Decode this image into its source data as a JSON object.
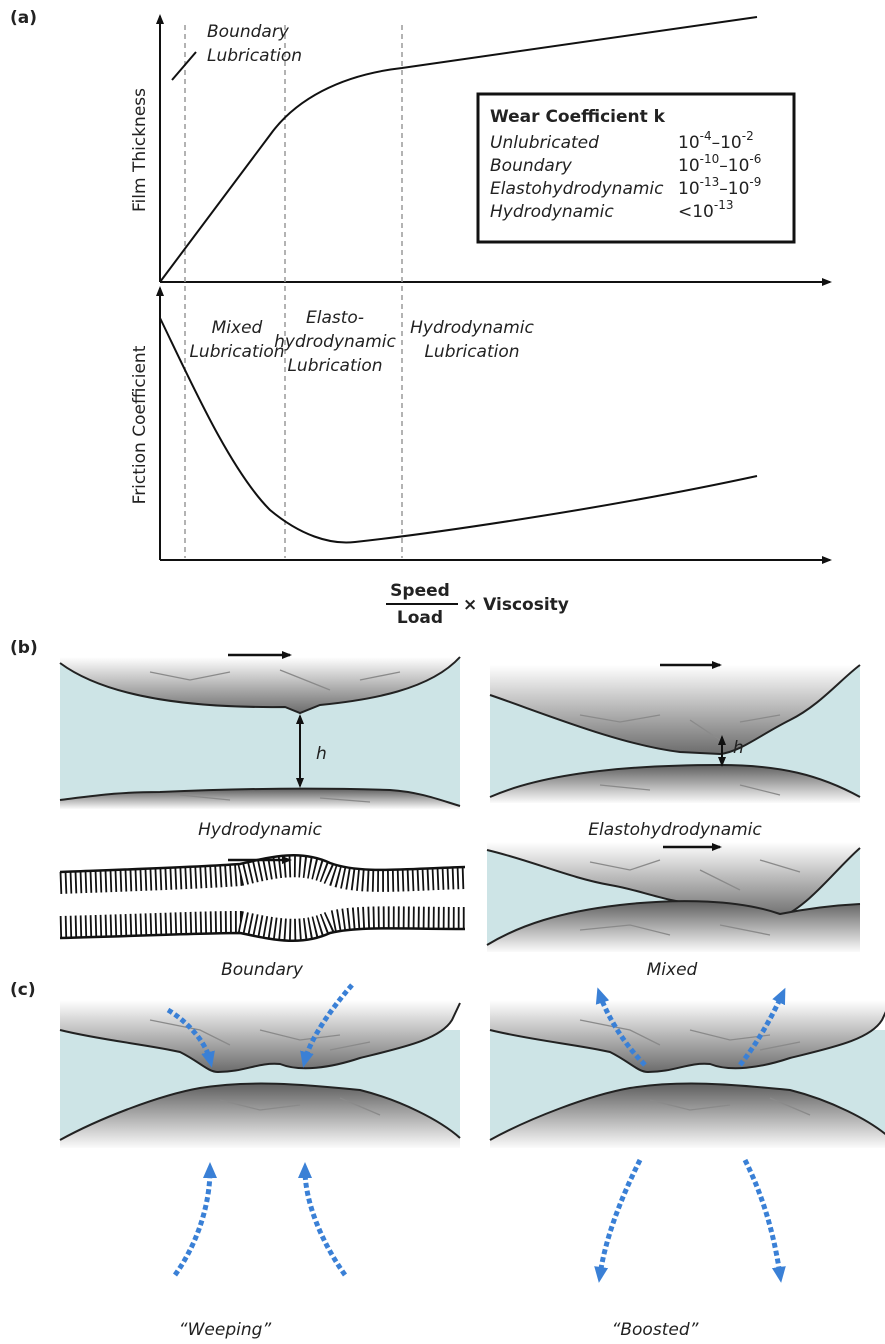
{
  "panel_a": {
    "label": "(a)",
    "boundary_label": [
      "Boundary",
      "Lubrication"
    ],
    "y_label_top": "Film Thickness",
    "y_label_bottom": "Friction Coefficient",
    "regime_labels": {
      "mixed": [
        "Mixed",
        "Lubrication"
      ],
      "ehd": [
        "Elasto-",
        "hydrodynamic",
        "Lubrication"
      ],
      "hydrodynamic": [
        "Hydrodynamic",
        "Lubrication"
      ]
    },
    "wear_box": {
      "title": "Wear Coefficient k",
      "rows": [
        {
          "label": "Unlubricated",
          "terms": [
            {
              "base": "10",
              "exp": "-4"
            },
            {
              "base": "–10",
              "exp": "-2"
            }
          ]
        },
        {
          "label": "Boundary",
          "terms": [
            {
              "base": "10",
              "exp": "-10"
            },
            {
              "base": "–10",
              "exp": "-6"
            }
          ]
        },
        {
          "label": "Elastohydrodynamic",
          "terms": [
            {
              "base": "10",
              "exp": "-13"
            },
            {
              "base": "–10",
              "exp": "-9"
            }
          ]
        },
        {
          "label": "Hydrodynamic",
          "terms": [
            {
              "base": "<10",
              "exp": "-13"
            }
          ]
        }
      ]
    },
    "x_label": {
      "numerator": "Speed",
      "denominator": "Load",
      "factor": "× Viscosity"
    }
  },
  "panel_b": {
    "label": "(b)",
    "gap_label": [
      "h",
      "h"
    ],
    "captions": [
      "Hydrodynamic",
      "Elastohydrodynamic",
      "Boundary",
      "Mixed"
    ]
  },
  "panel_c": {
    "label": "(c)",
    "captions": [
      "“Weeping”",
      "“Boosted”"
    ]
  }
}
